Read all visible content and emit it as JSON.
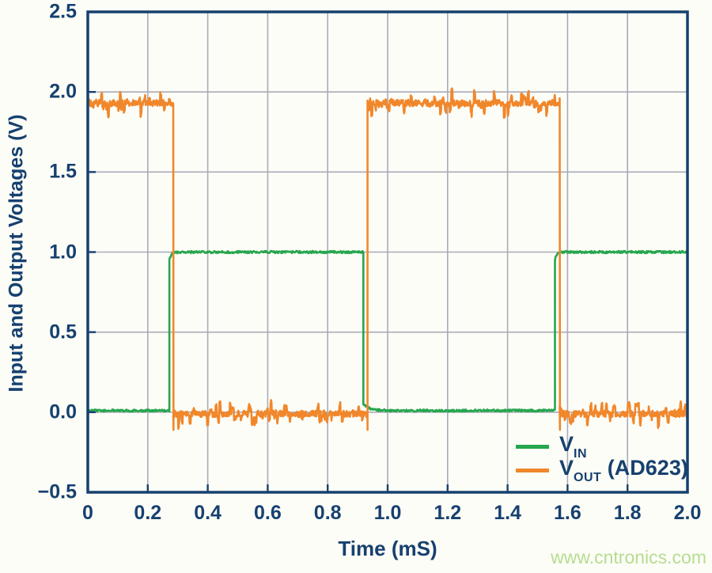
{
  "page": {
    "watermark": "www.cntronics.com"
  },
  "chart_data": {
    "type": "line",
    "title": "",
    "xlabel": "Time (mS)",
    "ylabel": "Input and Output Voltages (V)",
    "xlim": [
      0,
      2.0
    ],
    "ylim": [
      -0.5,
      2.5
    ],
    "xticks": [
      0,
      0.2,
      0.4,
      0.6,
      0.8,
      1.0,
      1.2,
      1.4,
      1.6,
      1.8,
      2.0
    ],
    "xtick_labels": [
      "0",
      "0.2",
      "0.4",
      "0.6",
      "0.8",
      "1.0",
      "1.2",
      "1.4",
      "1.6",
      "1.8",
      "2.0"
    ],
    "yticks": [
      2.5,
      2.0,
      1.5,
      1.0,
      0.5,
      0.0,
      -0.5
    ],
    "ytick_labels": [
      "2.5",
      "2.0",
      "1.5",
      "1.0",
      "0.5",
      "0.0",
      "−0.5"
    ],
    "grid": true,
    "legend_position": "inside-bottom-right",
    "axis_color": "#16406f",
    "grid_color": "#a9abb9",
    "watermark_color": "#b5dd90",
    "series": [
      {
        "name": "VIN",
        "legend": {
          "main": "V",
          "sub": "IN",
          "suffix": ""
        },
        "color": "#26a64e",
        "shape": "square-wave",
        "segments": [
          {
            "t": [
              0.0,
              0.272
            ],
            "v": 0.01
          },
          {
            "t": [
              0.272,
              0.919
            ],
            "v": 1.0
          },
          {
            "t": [
              0.919,
              1.558
            ],
            "v": 0.01
          },
          {
            "t": [
              1.558,
              2.0
            ],
            "v": 1.0
          }
        ],
        "sample_dt": 0.002,
        "noise": {
          "base": 0.007,
          "spike_prob": 0,
          "spike_amp": 0
        },
        "rise_round": 0.05,
        "fall_tail": 0.04
      },
      {
        "name": "VOUT (AD623)",
        "legend": {
          "main": "V",
          "sub": "OUT",
          "suffix": " (AD623)"
        },
        "color": "#f1872b",
        "shape": "square-wave",
        "segments": [
          {
            "t": [
              0.0,
              0.285
            ],
            "v": 1.93
          },
          {
            "t": [
              0.285,
              0.933
            ],
            "v": -0.01
          },
          {
            "t": [
              0.933,
              1.574
            ],
            "v": 1.93
          },
          {
            "t": [
              1.574,
              2.0
            ],
            "v": -0.01
          }
        ],
        "sample_dt": 0.0014,
        "noise": {
          "base": 0.02,
          "spike_prob": 0.14,
          "spike_amp": 0.075
        },
        "edge_undershoot": 0.1
      }
    ]
  }
}
